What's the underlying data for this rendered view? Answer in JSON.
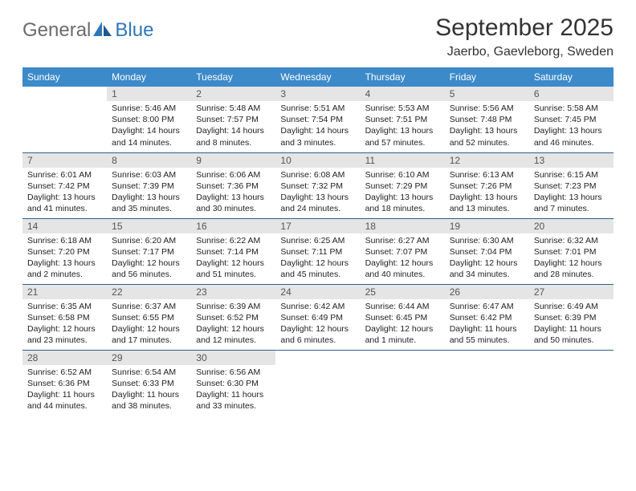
{
  "brand": {
    "general": "General",
    "blue": "Blue"
  },
  "title": {
    "month": "September 2025",
    "location": "Jaerbo, Gaevleborg, Sweden"
  },
  "colors": {
    "header_bg": "#3c8ac9",
    "header_text": "#ffffff",
    "row_border": "#2e5f8a",
    "daynum_bg": "#e5e5e5",
    "daynum_text": "#555555",
    "body_text": "#222222",
    "logo_grey": "#6b6b6b",
    "logo_blue": "#2e77b8",
    "page_bg": "#ffffff"
  },
  "weekdays": [
    "Sunday",
    "Monday",
    "Tuesday",
    "Wednesday",
    "Thursday",
    "Friday",
    "Saturday"
  ],
  "weeks": [
    [
      null,
      {
        "n": "1",
        "sr": "Sunrise: 5:46 AM",
        "ss": "Sunset: 8:00 PM",
        "dl": "Daylight: 14 hours and 14 minutes."
      },
      {
        "n": "2",
        "sr": "Sunrise: 5:48 AM",
        "ss": "Sunset: 7:57 PM",
        "dl": "Daylight: 14 hours and 8 minutes."
      },
      {
        "n": "3",
        "sr": "Sunrise: 5:51 AM",
        "ss": "Sunset: 7:54 PM",
        "dl": "Daylight: 14 hours and 3 minutes."
      },
      {
        "n": "4",
        "sr": "Sunrise: 5:53 AM",
        "ss": "Sunset: 7:51 PM",
        "dl": "Daylight: 13 hours and 57 minutes."
      },
      {
        "n": "5",
        "sr": "Sunrise: 5:56 AM",
        "ss": "Sunset: 7:48 PM",
        "dl": "Daylight: 13 hours and 52 minutes."
      },
      {
        "n": "6",
        "sr": "Sunrise: 5:58 AM",
        "ss": "Sunset: 7:45 PM",
        "dl": "Daylight: 13 hours and 46 minutes."
      }
    ],
    [
      {
        "n": "7",
        "sr": "Sunrise: 6:01 AM",
        "ss": "Sunset: 7:42 PM",
        "dl": "Daylight: 13 hours and 41 minutes."
      },
      {
        "n": "8",
        "sr": "Sunrise: 6:03 AM",
        "ss": "Sunset: 7:39 PM",
        "dl": "Daylight: 13 hours and 35 minutes."
      },
      {
        "n": "9",
        "sr": "Sunrise: 6:06 AM",
        "ss": "Sunset: 7:36 PM",
        "dl": "Daylight: 13 hours and 30 minutes."
      },
      {
        "n": "10",
        "sr": "Sunrise: 6:08 AM",
        "ss": "Sunset: 7:32 PM",
        "dl": "Daylight: 13 hours and 24 minutes."
      },
      {
        "n": "11",
        "sr": "Sunrise: 6:10 AM",
        "ss": "Sunset: 7:29 PM",
        "dl": "Daylight: 13 hours and 18 minutes."
      },
      {
        "n": "12",
        "sr": "Sunrise: 6:13 AM",
        "ss": "Sunset: 7:26 PM",
        "dl": "Daylight: 13 hours and 13 minutes."
      },
      {
        "n": "13",
        "sr": "Sunrise: 6:15 AM",
        "ss": "Sunset: 7:23 PM",
        "dl": "Daylight: 13 hours and 7 minutes."
      }
    ],
    [
      {
        "n": "14",
        "sr": "Sunrise: 6:18 AM",
        "ss": "Sunset: 7:20 PM",
        "dl": "Daylight: 13 hours and 2 minutes."
      },
      {
        "n": "15",
        "sr": "Sunrise: 6:20 AM",
        "ss": "Sunset: 7:17 PM",
        "dl": "Daylight: 12 hours and 56 minutes."
      },
      {
        "n": "16",
        "sr": "Sunrise: 6:22 AM",
        "ss": "Sunset: 7:14 PM",
        "dl": "Daylight: 12 hours and 51 minutes."
      },
      {
        "n": "17",
        "sr": "Sunrise: 6:25 AM",
        "ss": "Sunset: 7:11 PM",
        "dl": "Daylight: 12 hours and 45 minutes."
      },
      {
        "n": "18",
        "sr": "Sunrise: 6:27 AM",
        "ss": "Sunset: 7:07 PM",
        "dl": "Daylight: 12 hours and 40 minutes."
      },
      {
        "n": "19",
        "sr": "Sunrise: 6:30 AM",
        "ss": "Sunset: 7:04 PM",
        "dl": "Daylight: 12 hours and 34 minutes."
      },
      {
        "n": "20",
        "sr": "Sunrise: 6:32 AM",
        "ss": "Sunset: 7:01 PM",
        "dl": "Daylight: 12 hours and 28 minutes."
      }
    ],
    [
      {
        "n": "21",
        "sr": "Sunrise: 6:35 AM",
        "ss": "Sunset: 6:58 PM",
        "dl": "Daylight: 12 hours and 23 minutes."
      },
      {
        "n": "22",
        "sr": "Sunrise: 6:37 AM",
        "ss": "Sunset: 6:55 PM",
        "dl": "Daylight: 12 hours and 17 minutes."
      },
      {
        "n": "23",
        "sr": "Sunrise: 6:39 AM",
        "ss": "Sunset: 6:52 PM",
        "dl": "Daylight: 12 hours and 12 minutes."
      },
      {
        "n": "24",
        "sr": "Sunrise: 6:42 AM",
        "ss": "Sunset: 6:49 PM",
        "dl": "Daylight: 12 hours and 6 minutes."
      },
      {
        "n": "25",
        "sr": "Sunrise: 6:44 AM",
        "ss": "Sunset: 6:45 PM",
        "dl": "Daylight: 12 hours and 1 minute."
      },
      {
        "n": "26",
        "sr": "Sunrise: 6:47 AM",
        "ss": "Sunset: 6:42 PM",
        "dl": "Daylight: 11 hours and 55 minutes."
      },
      {
        "n": "27",
        "sr": "Sunrise: 6:49 AM",
        "ss": "Sunset: 6:39 PM",
        "dl": "Daylight: 11 hours and 50 minutes."
      }
    ],
    [
      {
        "n": "28",
        "sr": "Sunrise: 6:52 AM",
        "ss": "Sunset: 6:36 PM",
        "dl": "Daylight: 11 hours and 44 minutes."
      },
      {
        "n": "29",
        "sr": "Sunrise: 6:54 AM",
        "ss": "Sunset: 6:33 PM",
        "dl": "Daylight: 11 hours and 38 minutes."
      },
      {
        "n": "30",
        "sr": "Sunrise: 6:56 AM",
        "ss": "Sunset: 6:30 PM",
        "dl": "Daylight: 11 hours and 33 minutes."
      },
      null,
      null,
      null,
      null
    ]
  ]
}
